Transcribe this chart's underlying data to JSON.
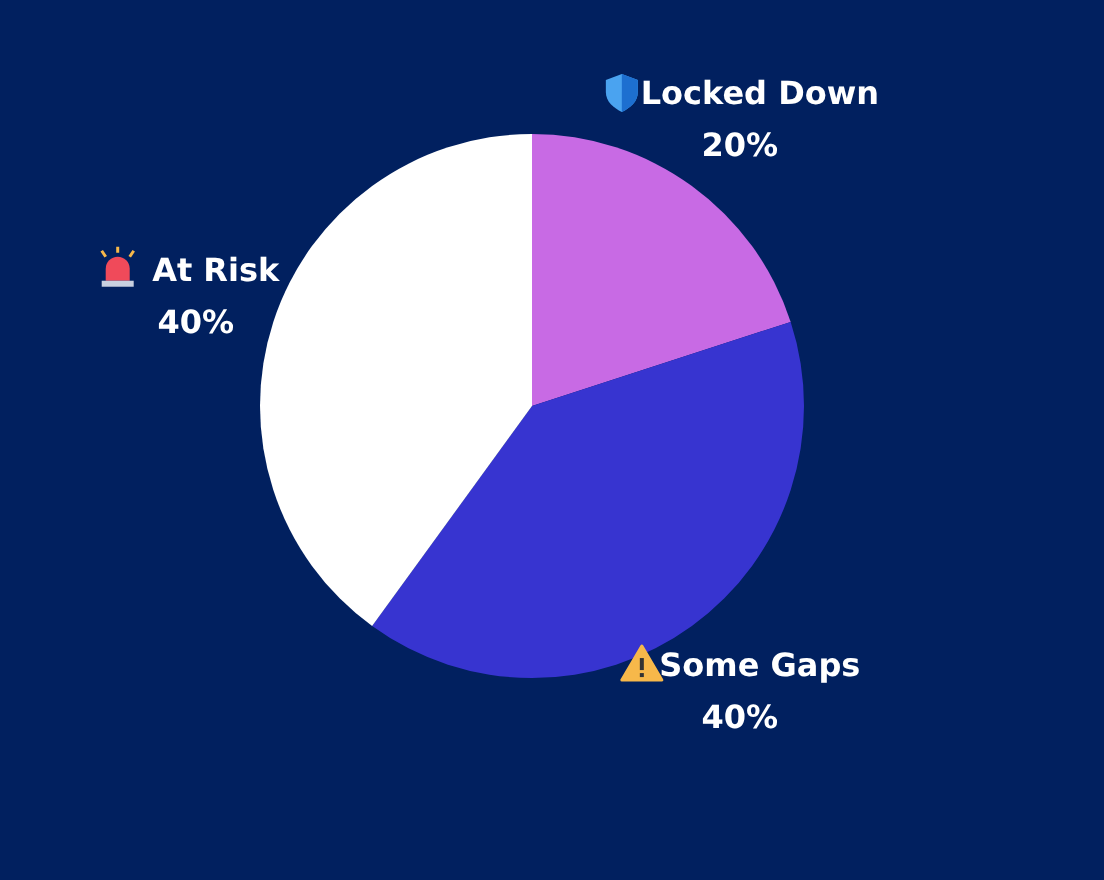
{
  "chart_data": {
    "type": "pie",
    "categories": [
      "Locked Down",
      "Some Gaps",
      "At Risk"
    ],
    "values": [
      20,
      40,
      40
    ],
    "colors": [
      "#c86ae4",
      "#3734d0",
      "#ffffff"
    ],
    "value_labels": [
      "20%",
      "40%",
      "40%"
    ]
  }
}
